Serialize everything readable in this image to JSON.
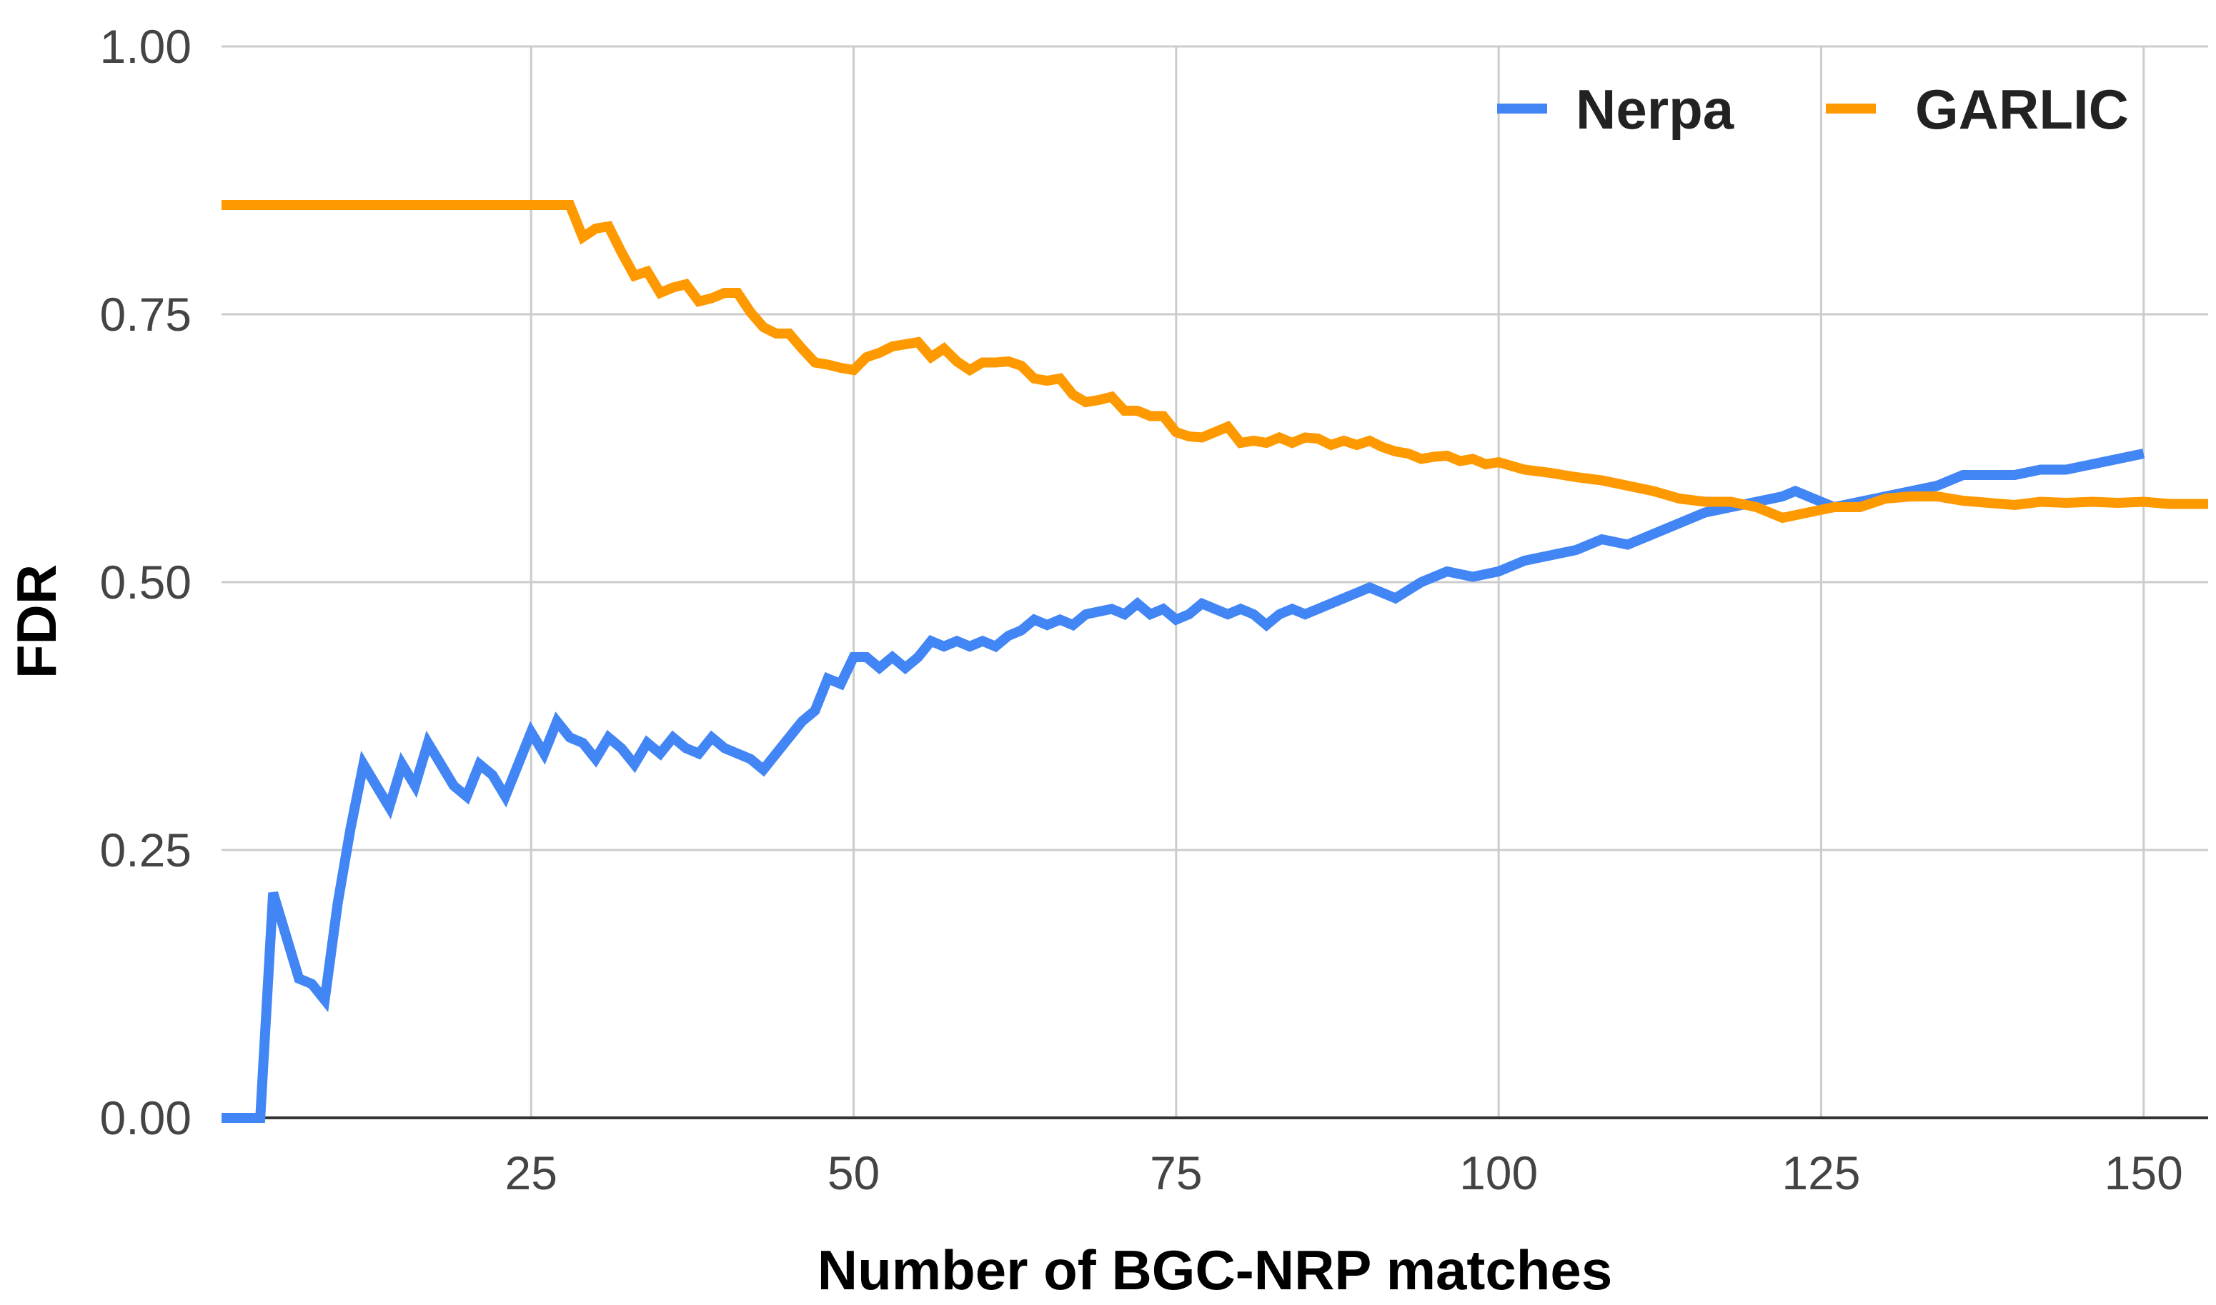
{
  "chart_data": {
    "type": "line",
    "title": "",
    "xlabel": "Number of BGC-NRP matches",
    "ylabel": "FDR",
    "xlim": [
      1,
      155
    ],
    "ylim": [
      0,
      1
    ],
    "xticks": [
      25,
      50,
      75,
      100,
      125,
      150
    ],
    "xtick_labels": [
      "25",
      "50",
      "75",
      "100",
      "125",
      "150"
    ],
    "yticks": [
      0,
      0.25,
      0.5,
      0.75,
      1.0
    ],
    "ytick_labels": [
      "0.00",
      "0.25",
      "0.50",
      "0.75",
      "1.00"
    ],
    "grid": true,
    "legend_position": "top-right",
    "series": [
      {
        "name": "Nerpa",
        "color": "#4285f4",
        "x": [
          1,
          3,
          4,
          5,
          7,
          8,
          9,
          10,
          11,
          12,
          13,
          14,
          15,
          16,
          17,
          18,
          19,
          20,
          21,
          22,
          23,
          24,
          25,
          26,
          27,
          28,
          29,
          30,
          31,
          32,
          33,
          34,
          35,
          36,
          37,
          38,
          39,
          40,
          42,
          43,
          44,
          46,
          47,
          48,
          49,
          50,
          51,
          52,
          53,
          54,
          55,
          56,
          57,
          58,
          59,
          60,
          61,
          62,
          63,
          64,
          65,
          66,
          67,
          68,
          70,
          71,
          72,
          73,
          74,
          75,
          76,
          77,
          78,
          79,
          80,
          81,
          82,
          83,
          84,
          85,
          86,
          88,
          90,
          92,
          94,
          96,
          98,
          100,
          102,
          104,
          106,
          108,
          110,
          112,
          114,
          116,
          118,
          120,
          122,
          123,
          124,
          126,
          128,
          130,
          132,
          134,
          136,
          138,
          140,
          142,
          144,
          146,
          148,
          150
        ],
        "y": [
          0,
          0,
          0,
          0.21,
          0.13,
          0.125,
          0.11,
          0.2,
          0.27,
          0.33,
          0.31,
          0.29,
          0.33,
          0.31,
          0.35,
          0.33,
          0.31,
          0.3,
          0.33,
          0.32,
          0.3,
          0.33,
          0.36,
          0.34,
          0.37,
          0.355,
          0.35,
          0.335,
          0.355,
          0.345,
          0.33,
          0.35,
          0.34,
          0.355,
          0.345,
          0.34,
          0.355,
          0.345,
          0.335,
          0.325,
          0.34,
          0.37,
          0.38,
          0.41,
          0.405,
          0.43,
          0.43,
          0.42,
          0.43,
          0.42,
          0.43,
          0.445,
          0.44,
          0.445,
          0.44,
          0.445,
          0.44,
          0.45,
          0.455,
          0.465,
          0.46,
          0.465,
          0.46,
          0.47,
          0.475,
          0.47,
          0.48,
          0.47,
          0.475,
          0.465,
          0.47,
          0.48,
          0.475,
          0.47,
          0.475,
          0.47,
          0.46,
          0.47,
          0.475,
          0.47,
          0.475,
          0.485,
          0.495,
          0.485,
          0.5,
          0.51,
          0.505,
          0.51,
          0.52,
          0.525,
          0.53,
          0.54,
          0.535,
          0.545,
          0.555,
          0.565,
          0.57,
          0.575,
          0.58,
          0.585,
          0.58,
          0.57,
          0.575,
          0.58,
          0.585,
          0.59,
          0.6,
          0.6,
          0.6,
          0.605,
          0.605,
          0.61,
          0.615,
          0.62
        ]
      },
      {
        "name": "GARLIC",
        "color": "#ff9900",
        "x": [
          1,
          5,
          10,
          15,
          20,
          25,
          27,
          28,
          29,
          30,
          31,
          32,
          33,
          34,
          35,
          36,
          37,
          38,
          39,
          40,
          41,
          42,
          43,
          44,
          45,
          46,
          47,
          48,
          49,
          50,
          51,
          52,
          53,
          54,
          55,
          56,
          57,
          58,
          59,
          60,
          61,
          62,
          63,
          64,
          65,
          66,
          67,
          68,
          69,
          70,
          71,
          72,
          73,
          74,
          75,
          76,
          77,
          78,
          79,
          80,
          81,
          82,
          83,
          84,
          85,
          86,
          87,
          88,
          89,
          90,
          91,
          92,
          93,
          94,
          95,
          96,
          97,
          98,
          99,
          100,
          102,
          104,
          106,
          108,
          110,
          112,
          114,
          116,
          118,
          120,
          122,
          124,
          126,
          128,
          130,
          132,
          134,
          136,
          138,
          140,
          142,
          144,
          146,
          148,
          150,
          152,
          155
        ],
        "y": [
          0.852,
          0.852,
          0.852,
          0.852,
          0.852,
          0.852,
          0.852,
          0.852,
          0.822,
          0.83,
          0.832,
          0.808,
          0.786,
          0.79,
          0.77,
          0.775,
          0.778,
          0.762,
          0.765,
          0.77,
          0.77,
          0.752,
          0.738,
          0.732,
          0.732,
          0.718,
          0.705,
          0.703,
          0.7,
          0.698,
          0.71,
          0.714,
          0.72,
          0.722,
          0.724,
          0.71,
          0.718,
          0.706,
          0.698,
          0.705,
          0.705,
          0.706,
          0.702,
          0.69,
          0.688,
          0.69,
          0.675,
          0.668,
          0.67,
          0.673,
          0.66,
          0.66,
          0.655,
          0.655,
          0.64,
          0.636,
          0.635,
          0.64,
          0.645,
          0.63,
          0.632,
          0.63,
          0.635,
          0.63,
          0.635,
          0.634,
          0.628,
          0.632,
          0.628,
          0.632,
          0.626,
          0.622,
          0.62,
          0.615,
          0.617,
          0.618,
          0.613,
          0.615,
          0.61,
          0.612,
          0.605,
          0.602,
          0.598,
          0.595,
          0.59,
          0.585,
          0.578,
          0.575,
          0.575,
          0.57,
          0.56,
          0.565,
          0.57,
          0.57,
          0.578,
          0.58,
          0.58,
          0.576,
          0.574,
          0.572,
          0.575,
          0.574,
          0.575,
          0.574,
          0.575,
          0.573,
          0.573
        ]
      }
    ]
  }
}
